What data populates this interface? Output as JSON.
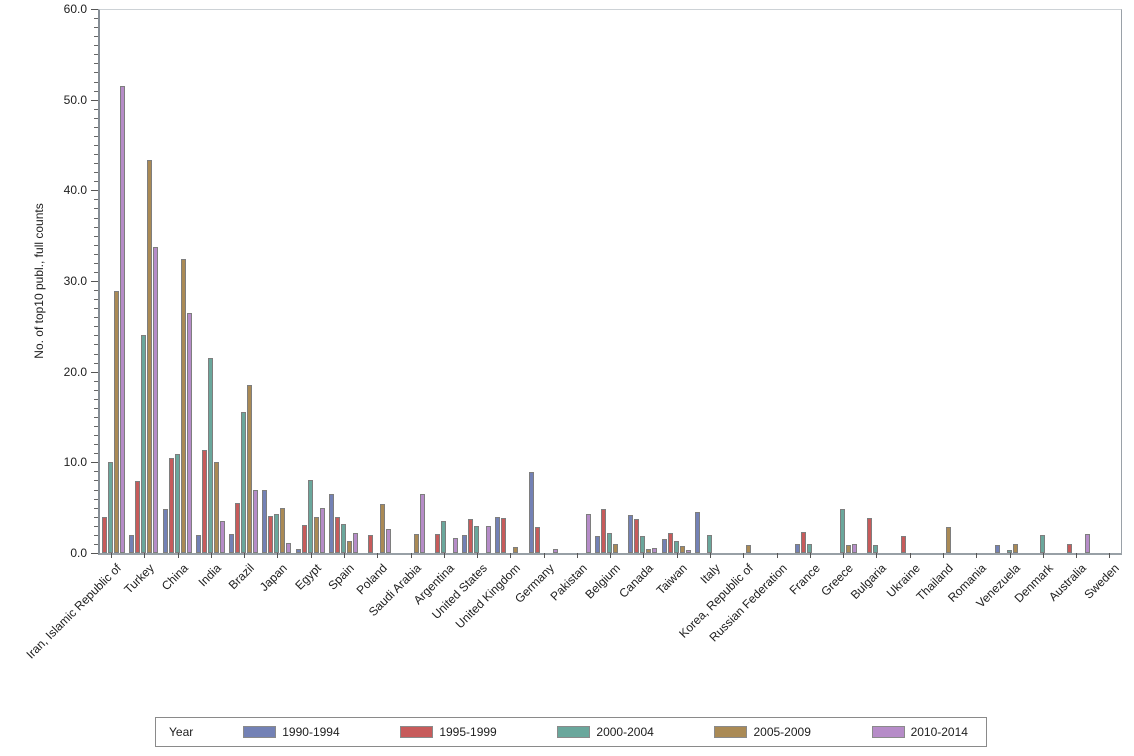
{
  "figure": {
    "background": "#ffffff"
  },
  "y_axis": {
    "title": "No. of top10 publ., full counts",
    "tick_labels": [
      "0.0",
      "10.0",
      "20.0",
      "30.0",
      "40.0",
      "50.0",
      "60.0"
    ],
    "min": 0,
    "max": 60,
    "major_step": 10,
    "minor_step": 1
  },
  "legend": {
    "title": "Year",
    "entries": [
      {
        "label": "1990-1994",
        "color": "#7381B5"
      },
      {
        "label": "1995-1999",
        "color": "#C75B5B"
      },
      {
        "label": "2000-2004",
        "color": "#6AA79C"
      },
      {
        "label": "2005-2009",
        "color": "#AA8A55"
      },
      {
        "label": "2010-2014",
        "color": "#B68CC8"
      }
    ]
  },
  "chart_data": {
    "type": "bar",
    "title": "",
    "xlabel": "",
    "ylabel": "No. of top10 publ., full counts",
    "ylim": [
      0,
      60
    ],
    "grid": false,
    "legend_position": "bottom",
    "categories": [
      "Iran, Islamic Republic of",
      "Turkey",
      "China",
      "India",
      "Brazil",
      "Japan",
      "Egypt",
      "Spain",
      "Poland",
      "Saudi Arabia",
      "Argentina",
      "United States",
      "United Kingdom",
      "Germany",
      "Pakistan",
      "Belgium",
      "Canada",
      "Taiwan",
      "Italy",
      "Korea, Republic of",
      "Russian Federation",
      "France",
      "Greece",
      "Bulgaria",
      "Ukraine",
      "Thailand",
      "Romania",
      "Venezuela",
      "Denmark",
      "Australia",
      "Sweden"
    ],
    "series": [
      {
        "name": "1990-1994",
        "color": "#7381B5",
        "values": [
          0,
          2.0,
          4.9,
          2.0,
          2.1,
          7.0,
          0.4,
          6.5,
          0,
          0,
          0,
          2.0,
          4.0,
          8.9,
          0,
          1.9,
          4.2,
          1.5,
          4.5,
          0,
          0,
          1.0,
          0,
          0,
          0,
          0,
          0,
          0.9,
          0,
          0,
          0
        ]
      },
      {
        "name": "1995-1999",
        "color": "#C75B5B",
        "values": [
          4.0,
          7.9,
          10.5,
          11.4,
          5.5,
          4.1,
          3.1,
          4.0,
          2.0,
          0,
          2.1,
          3.7,
          3.9,
          2.9,
          0,
          4.9,
          3.8,
          2.2,
          0,
          0,
          0,
          2.3,
          0,
          3.9,
          1.9,
          0,
          0,
          0,
          0,
          1.0,
          0
        ]
      },
      {
        "name": "2000-2004",
        "color": "#6AA79C",
        "values": [
          10.0,
          24.0,
          10.9,
          21.5,
          15.5,
          4.3,
          8.0,
          3.2,
          0,
          0,
          3.5,
          3.0,
          0,
          0,
          0,
          2.2,
          1.9,
          1.3,
          2.0,
          0,
          0,
          1.0,
          4.8,
          0.9,
          0,
          0,
          0,
          0.3,
          2.0,
          0,
          0
        ]
      },
      {
        "name": "2005-2009",
        "color": "#AA8A55",
        "values": [
          28.9,
          43.3,
          32.4,
          10.0,
          18.5,
          5.0,
          4.0,
          1.3,
          5.4,
          2.1,
          0,
          0,
          0.7,
          0,
          0,
          1.0,
          0.4,
          0.8,
          0,
          0.9,
          0,
          0,
          0.9,
          0,
          0,
          2.9,
          0,
          1.0,
          0,
          0,
          0
        ]
      },
      {
        "name": "2010-2014",
        "color": "#B68CC8",
        "values": [
          51.5,
          33.8,
          26.5,
          3.5,
          7.0,
          1.1,
          5.0,
          2.2,
          2.7,
          6.5,
          1.7,
          3.0,
          0,
          0.4,
          4.3,
          0,
          0.6,
          0.3,
          0,
          0,
          0,
          0,
          1.0,
          0,
          0,
          0,
          0,
          0,
          0,
          2.1,
          0
        ]
      }
    ]
  }
}
